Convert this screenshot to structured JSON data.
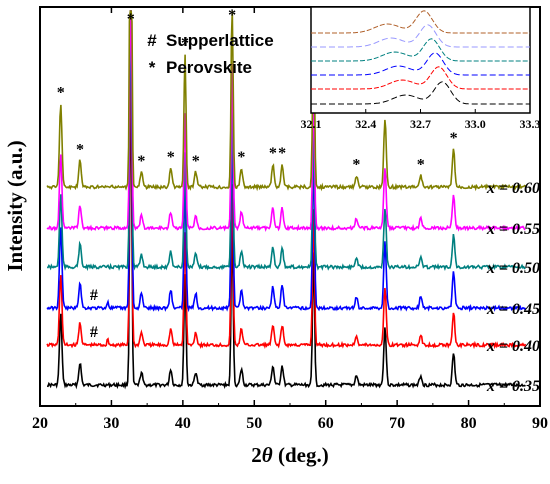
{
  "chart_data": {
    "type": "line",
    "xlabel_prefix": "2",
    "xlabel_symbol": "θ",
    "xlabel_suffix": " (deg.)",
    "ylabel": "Intensity (a.u.)",
    "xlim": [
      20,
      90
    ],
    "x_ticks": [
      20,
      30,
      40,
      50,
      60,
      70,
      80,
      90
    ],
    "legend": [
      {
        "symbol": "#",
        "text": "Supperlattice"
      },
      {
        "symbol": "*",
        "text": "Perovskite"
      }
    ],
    "series": [
      {
        "name": "x = 0.35",
        "color": "#000000"
      },
      {
        "name": "x = 0.40",
        "color": "#ff0000"
      },
      {
        "name": "x = 0.45",
        "color": "#0000ff"
      },
      {
        "name": "x = 0.50",
        "color": "#008080"
      },
      {
        "name": "x = 0.55",
        "color": "#ff00ff"
      },
      {
        "name": "x = 0.60",
        "color": "#808000"
      }
    ],
    "peaks": [
      {
        "x": 22.9,
        "h": 0.22
      },
      {
        "x": 25.6,
        "h": 0.07
      },
      {
        "x": 32.7,
        "h": 1.0
      },
      {
        "x": 34.2,
        "h": 0.04
      },
      {
        "x": 38.3,
        "h": 0.05
      },
      {
        "x": 40.3,
        "h": 0.35
      },
      {
        "x": 41.8,
        "h": 0.04
      },
      {
        "x": 46.9,
        "h": 0.5
      },
      {
        "x": 48.2,
        "h": 0.05
      },
      {
        "x": 52.6,
        "h": 0.06
      },
      {
        "x": 53.9,
        "h": 0.06
      },
      {
        "x": 58.3,
        "h": 0.42
      },
      {
        "x": 64.3,
        "h": 0.03
      },
      {
        "x": 68.3,
        "h": 0.18
      },
      {
        "x": 73.3,
        "h": 0.03
      },
      {
        "x": 77.9,
        "h": 0.1
      }
    ],
    "perovskite_marks": [
      22.9,
      25.6,
      32.7,
      34.2,
      38.3,
      40.3,
      41.8,
      46.9,
      48.2,
      52.6,
      53.9,
      58.3,
      64.3,
      68.3,
      73.3,
      77.9
    ],
    "superlattice_marks": [
      {
        "series": "x = 0.45",
        "x": 29.5
      },
      {
        "series": "x = 0.40",
        "x": 29.5
      }
    ],
    "inset": {
      "xlim": [
        32.1,
        33.3
      ],
      "x_ticks": [
        32.1,
        32.4,
        32.7,
        33.0,
        33.3
      ],
      "peak_positions": [
        32.82,
        32.8,
        32.78,
        32.76,
        32.74,
        32.72
      ]
    }
  }
}
